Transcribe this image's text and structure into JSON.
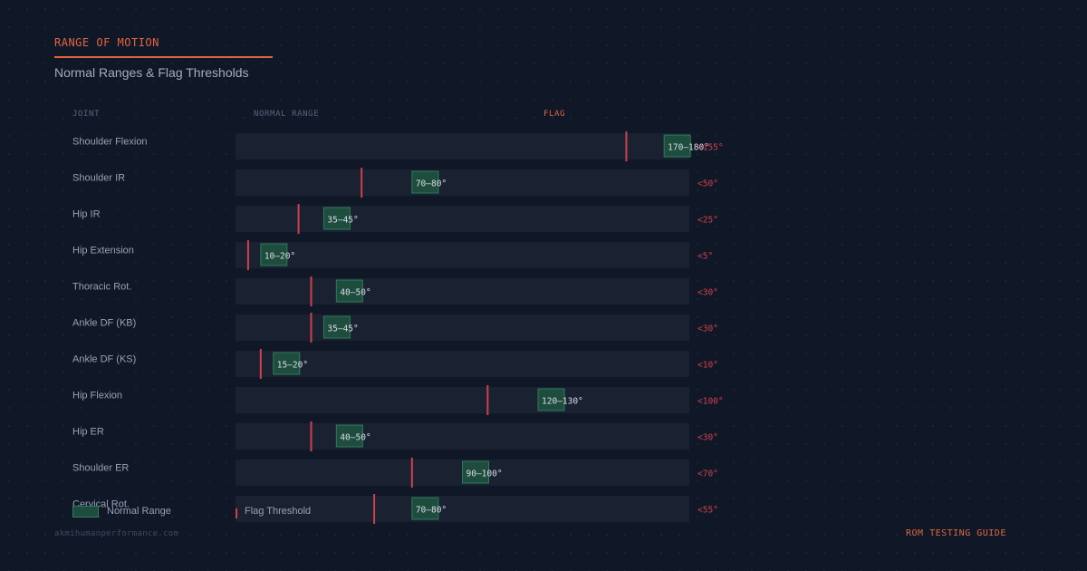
{
  "header": {
    "eyebrow": "RANGE OF MOTION",
    "subtitle": "Normal Ranges & Flag Thresholds"
  },
  "columns": {
    "joint": "JOINT",
    "normal_range": "NORMAL RANGE",
    "flag": "FLAG"
  },
  "chart_data": {
    "type": "bar",
    "x_domain": [
      0,
      180
    ],
    "colors": {
      "normal_fill": "#1f4d3d",
      "normal_stroke": "#2e7a5c",
      "flag_line": "#d0404a",
      "track": "#1a2232"
    },
    "rows": [
      {
        "joint": "Shoulder Flexion",
        "range": [
          170,
          180
        ],
        "range_label": "170–180°",
        "flag": 155,
        "flag_label": "<155°"
      },
      {
        "joint": "Shoulder IR",
        "range": [
          70,
          80
        ],
        "range_label": "70–80°",
        "flag": 50,
        "flag_label": "<50°"
      },
      {
        "joint": "Hip IR",
        "range": [
          35,
          45
        ],
        "range_label": "35–45°",
        "flag": 25,
        "flag_label": "<25°"
      },
      {
        "joint": "Hip Extension",
        "range": [
          10,
          20
        ],
        "range_label": "10–20°",
        "flag": 5,
        "flag_label": "<5°"
      },
      {
        "joint": "Thoracic Rot.",
        "range": [
          40,
          50
        ],
        "range_label": "40–50°",
        "flag": 30,
        "flag_label": "<30°"
      },
      {
        "joint": "Ankle DF (KB)",
        "range": [
          35,
          45
        ],
        "range_label": "35–45°",
        "flag": 30,
        "flag_label": "<30°"
      },
      {
        "joint": "Ankle DF (KS)",
        "range": [
          15,
          20
        ],
        "range_label": "15–20°",
        "flag": 10,
        "flag_label": "<10°"
      },
      {
        "joint": "Hip Flexion",
        "range": [
          120,
          130
        ],
        "range_label": "120–130°",
        "flag": 100,
        "flag_label": "<100°"
      },
      {
        "joint": "Hip ER",
        "range": [
          40,
          50
        ],
        "range_label": "40–50°",
        "flag": 30,
        "flag_label": "<30°"
      },
      {
        "joint": "Shoulder ER",
        "range": [
          90,
          100
        ],
        "range_label": "90–100°",
        "flag": 70,
        "flag_label": "<70°"
      },
      {
        "joint": "Cervical Rot.",
        "range": [
          70,
          80
        ],
        "range_label": "70–80°",
        "flag": 55,
        "flag_label": "<55°"
      }
    ]
  },
  "legend": {
    "normal": "Normal Range",
    "flag": "Flag Threshold"
  },
  "footer": {
    "source": "akmihumanperformance.com",
    "guide": "ROM TESTING GUIDE"
  }
}
